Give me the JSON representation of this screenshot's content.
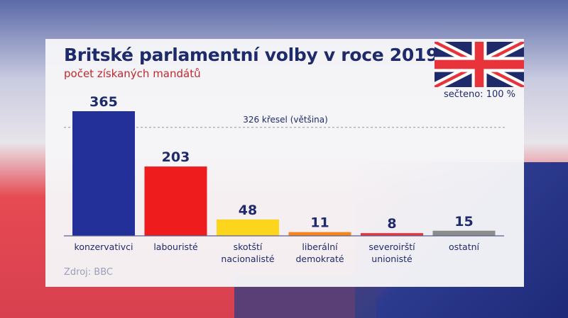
{
  "chart_data": {
    "type": "bar",
    "title": "Britské parlamentní volby v roce 2019",
    "subtitle": "počet získaných mandátů",
    "categories": [
      [
        "konzervativci"
      ],
      [
        "labouristé"
      ],
      [
        "skotští",
        "nacionalisté"
      ],
      [
        "liberální",
        "demokraté"
      ],
      [
        "severoirští",
        "unionisté"
      ],
      [
        "ostatní"
      ]
    ],
    "values": [
      365,
      203,
      48,
      11,
      8,
      15
    ],
    "colors": [
      "#24309a",
      "#ee1c1c",
      "#fdd51c",
      "#f5861f",
      "#e8333b",
      "#8c8c8c"
    ],
    "reference_line": {
      "value": 326,
      "label": "326 křesel (většina)"
    },
    "ylim": [
      0,
      365
    ],
    "grid": false
  },
  "counted": "sečteno: 100 %",
  "source": "Zdroj: BBC",
  "flag_icon": "union-jack-flag"
}
